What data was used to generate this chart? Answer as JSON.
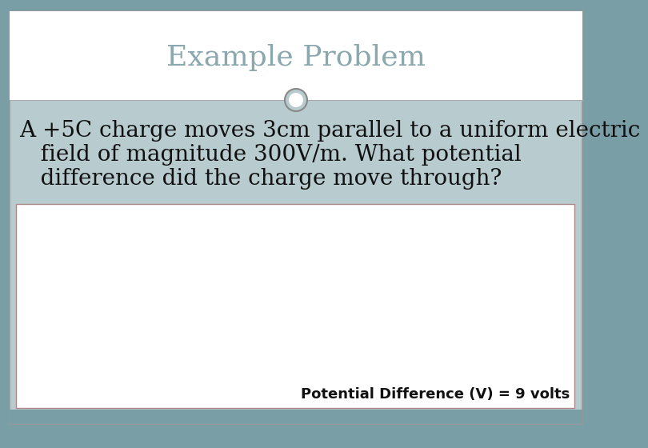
{
  "title": "Example Problem",
  "title_color": "#8aa8ad",
  "title_fontsize": 26,
  "question_line1": "A +5C charge moves 3cm parallel to a uniform electric",
  "question_line2": "   field of magnitude 300V/m. What potential",
  "question_line3": "   difference did the charge move through?",
  "answer_text": "Potential Difference (V) = 9 volts",
  "bg_outer": "#7a9ea6",
  "bg_slide": "#b8ccd0",
  "bg_white_box": "#ffffff",
  "bg_title_area": "#ffffff",
  "separator_color": "#aaaaaa",
  "answer_fontsize": 13,
  "question_fontsize": 20,
  "circle_bg": "#b8ccd0",
  "circle_edge": "#888888",
  "box_border_color": "#aa8888",
  "slide_border_color": "#999999",
  "bottom_strip_color": "#7a9ea6"
}
